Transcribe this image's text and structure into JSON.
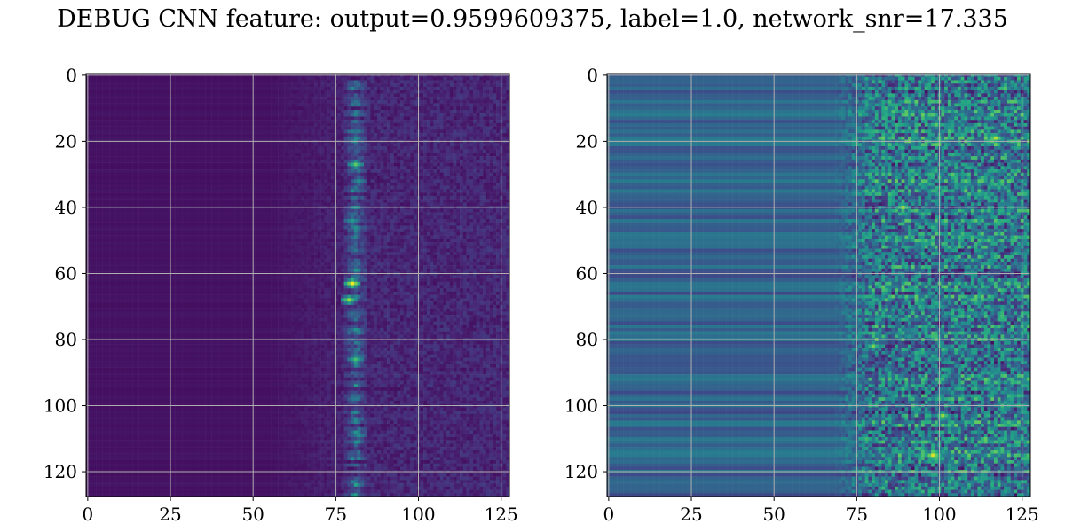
{
  "title": "DEBUG CNN feature: output=0.9599609375, label=1.0, network_snr=17.335",
  "chart_data": [
    {
      "type": "heatmap",
      "panel": "left",
      "colormap": "viridis",
      "grid": true,
      "rows": 128,
      "cols": 128,
      "xlim": [
        -0.5,
        127.5
      ],
      "ylim": [
        127.5,
        -0.5
      ],
      "x_ticks": [
        0,
        25,
        50,
        75,
        100,
        125
      ],
      "y_ticks": [
        0,
        20,
        40,
        60,
        80,
        100,
        120
      ],
      "x_tick_labels": [
        "0",
        "25",
        "50",
        "75",
        "100",
        "125"
      ],
      "y_tick_labels": [
        "0",
        "20",
        "40",
        "60",
        "80",
        "100",
        "120"
      ],
      "value_range": [
        0,
        1
      ],
      "description_bands": {
        "baseline": 0.04,
        "rise_start_col": 55,
        "peak_center_col": 81,
        "peak_width_cols": 4,
        "peak_strength": 0.35
      },
      "hotspots": [
        {
          "row": 27,
          "col": 81,
          "value": 0.75
        },
        {
          "row": 63,
          "col": 80,
          "value": 1.0
        },
        {
          "row": 68,
          "col": 79,
          "value": 0.85
        },
        {
          "row": 86,
          "col": 81,
          "value": 0.7
        },
        {
          "row": 44,
          "col": 80,
          "value": 0.55
        },
        {
          "row": 109,
          "col": 82,
          "value": 0.5
        },
        {
          "row": 32,
          "col": 82,
          "value": 0.5
        }
      ]
    },
    {
      "type": "heatmap",
      "panel": "right",
      "colormap": "viridis",
      "grid": true,
      "rows": 128,
      "cols": 128,
      "xlim": [
        -0.5,
        127.5
      ],
      "ylim": [
        127.5,
        -0.5
      ],
      "x_ticks": [
        0,
        25,
        50,
        75,
        100,
        125
      ],
      "y_ticks": [
        0,
        20,
        40,
        60,
        80,
        100,
        120
      ],
      "x_tick_labels": [
        "0",
        "25",
        "50",
        "75",
        "100",
        "125"
      ],
      "y_tick_labels": [
        "0",
        "20",
        "40",
        "60",
        "80",
        "100",
        "120"
      ],
      "value_range": [
        0,
        1
      ],
      "description_bands": {
        "baseline": 0.22,
        "row_stripe_strength": 0.2,
        "noise_start_col": 68,
        "noise_strength": 0.55
      },
      "hotspots": [
        {
          "row": 19,
          "col": 117,
          "value": 0.9
        },
        {
          "row": 40,
          "col": 89,
          "value": 0.85
        },
        {
          "row": 115,
          "col": 98,
          "value": 0.95
        },
        {
          "row": 103,
          "col": 101,
          "value": 0.85
        },
        {
          "row": 82,
          "col": 80,
          "value": 0.8
        },
        {
          "row": 15,
          "col": 99,
          "value": 0.75
        },
        {
          "row": 68,
          "col": 110,
          "value": 0.7
        }
      ]
    }
  ]
}
